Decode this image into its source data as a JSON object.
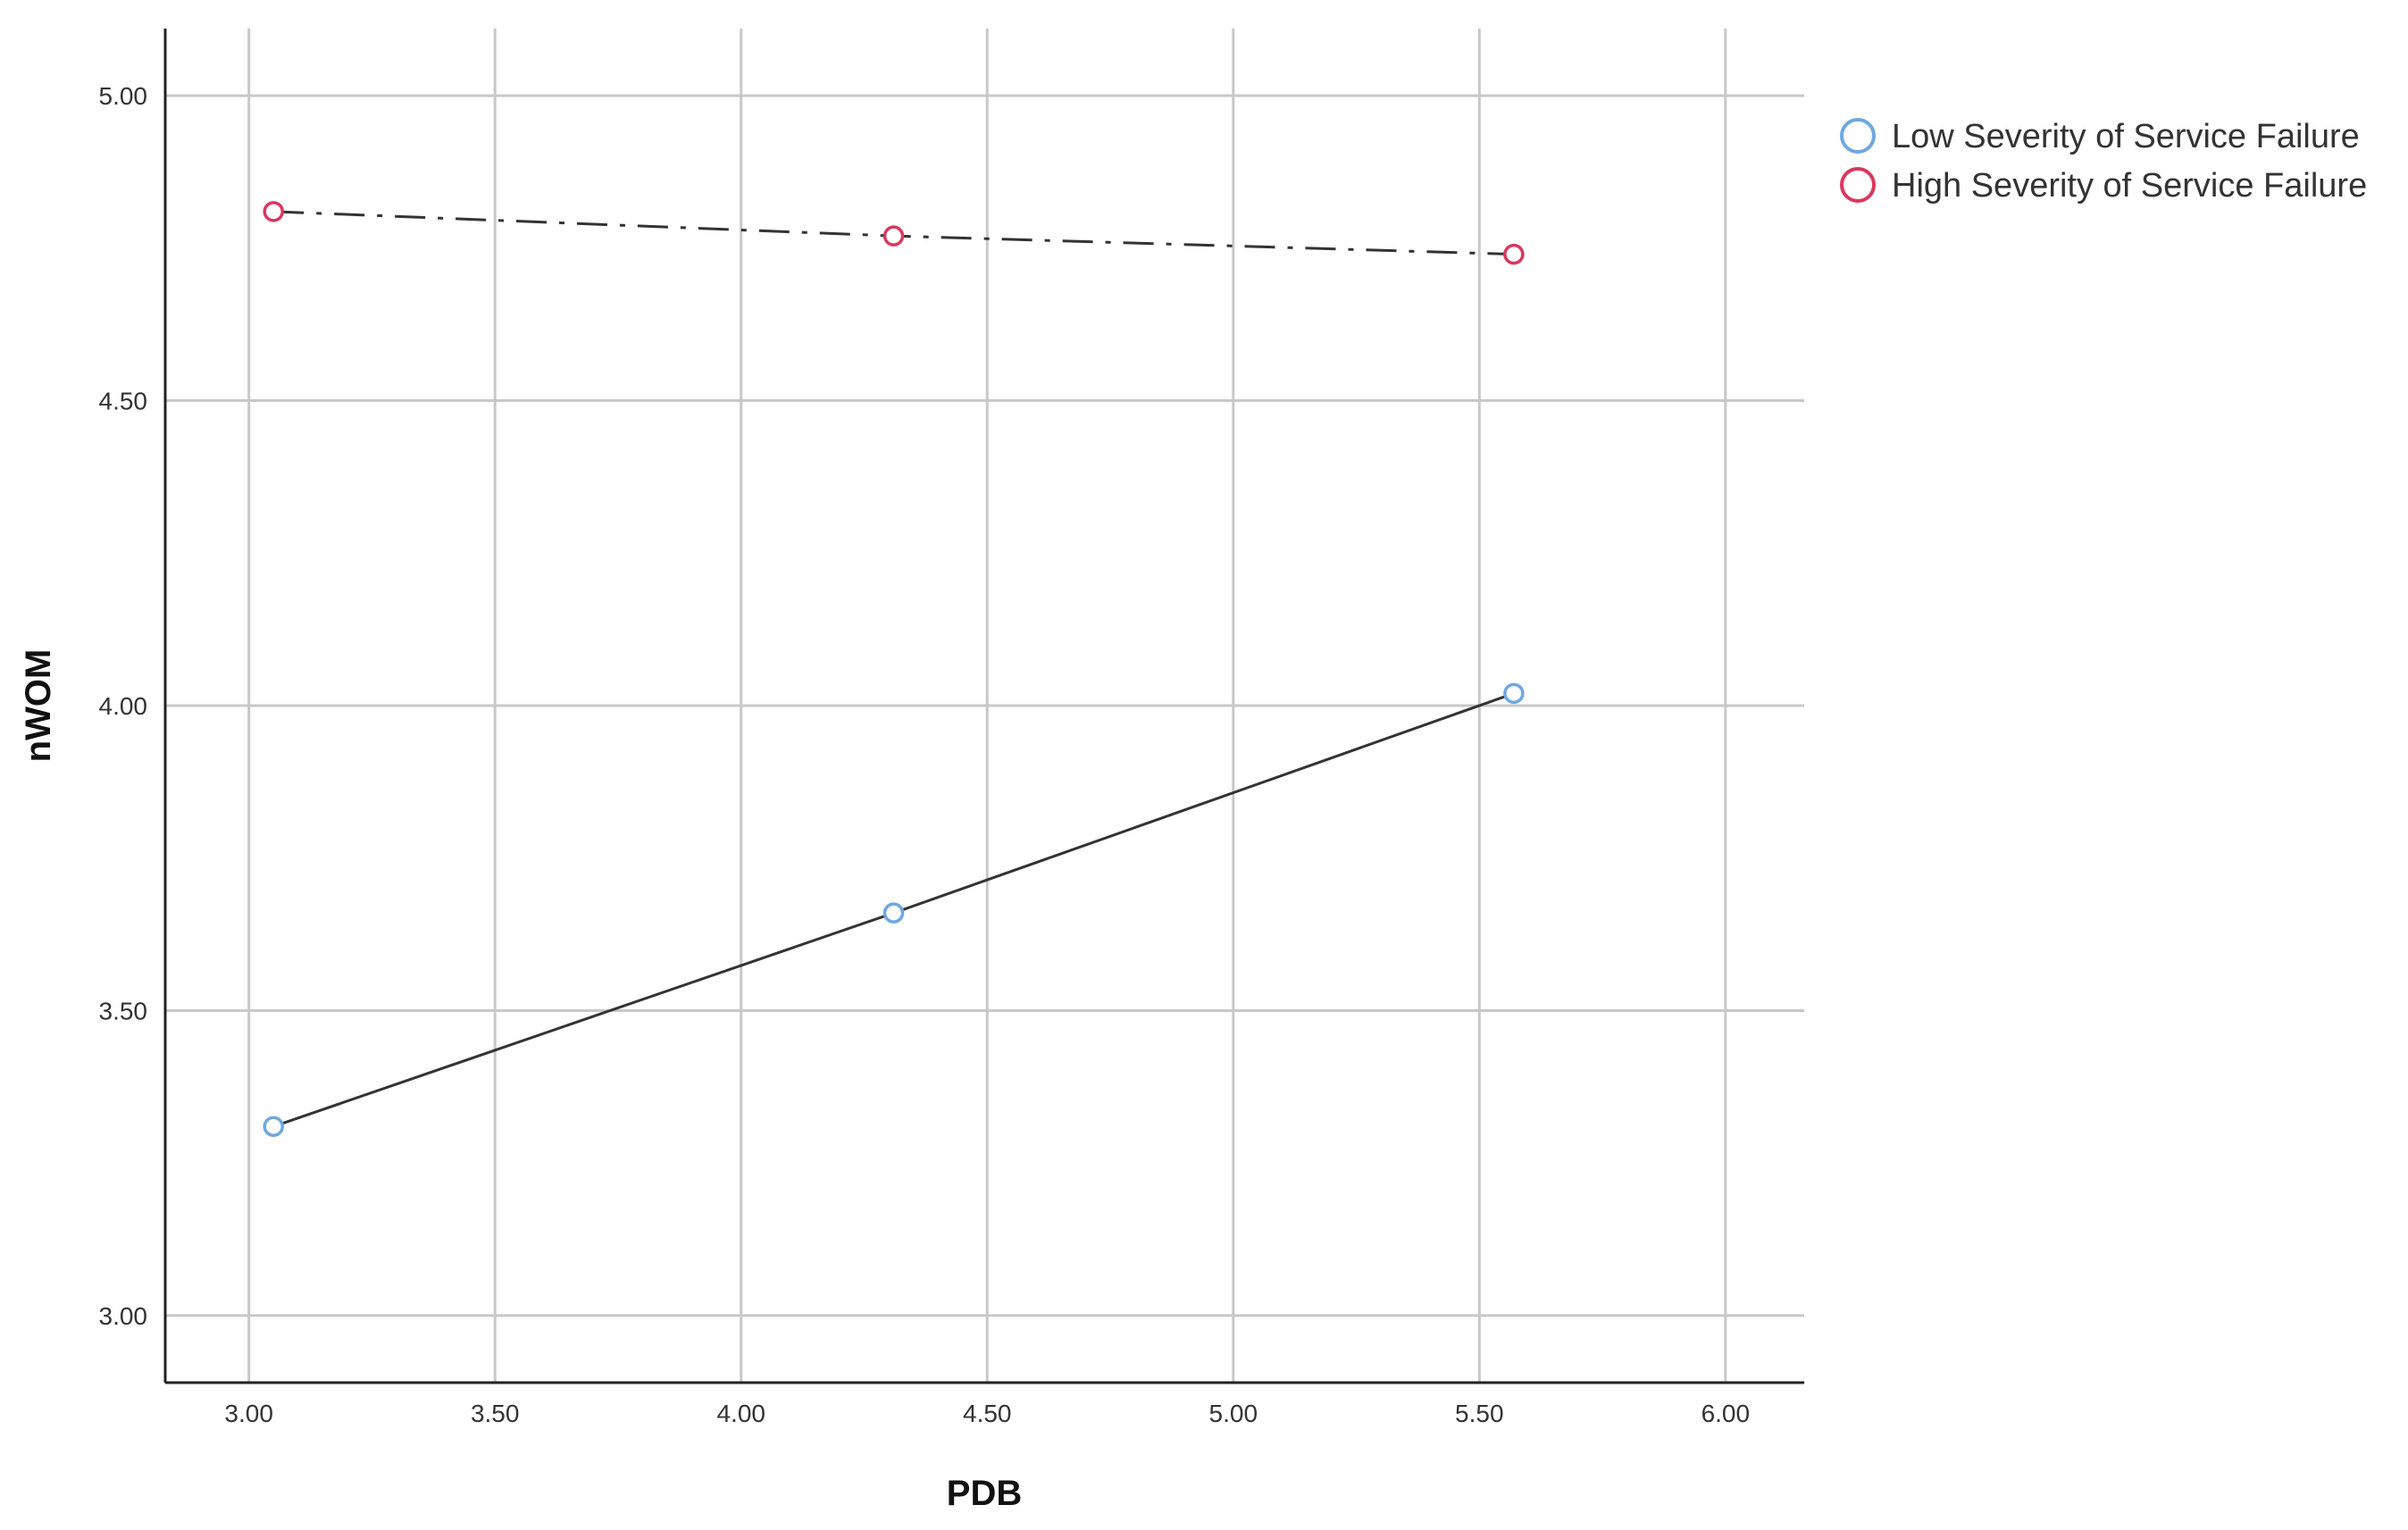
{
  "chart_data": {
    "type": "line",
    "title": "",
    "xlabel": "PDB",
    "ylabel": "nWOM",
    "xlim": [
      2.83,
      6.16
    ],
    "ylim": [
      2.89,
      5.11
    ],
    "x_ticks": [
      "3.00",
      "3.50",
      "4.00",
      "4.50",
      "5.00",
      "5.50",
      "6.00"
    ],
    "y_ticks": [
      "3.00",
      "3.50",
      "4.00",
      "4.50",
      "5.00"
    ],
    "grid": true,
    "legend_position": "right",
    "series": [
      {
        "name": "Low Severity of Service Failure",
        "color": "#6fa8e0",
        "line_style": "solid",
        "x": [
          3.05,
          4.31,
          5.57
        ],
        "y": [
          3.31,
          3.66,
          4.02
        ]
      },
      {
        "name": "High Severity of Service Failure",
        "color": "#d9385e",
        "line_style": "dash-dot",
        "x": [
          3.05,
          4.31,
          5.57
        ],
        "y": [
          4.81,
          4.77,
          4.74
        ]
      }
    ]
  }
}
